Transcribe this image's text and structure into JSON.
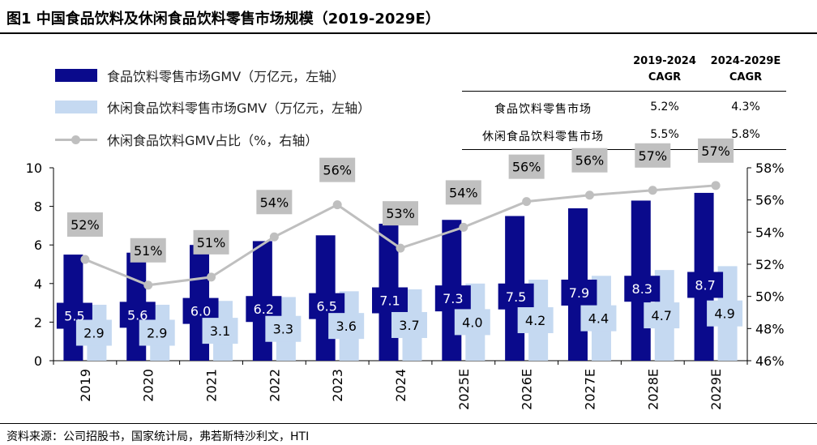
{
  "figure_title": "图1  中国食品饮料及休闲食品饮料零售市场规模（2019-2029E）",
  "legend": [
    {
      "label": "食品饮料零售市场GMV（万亿元，左轴）"
    },
    {
      "label": "休闲食品饮料零售市场GMV（万亿元，左轴）"
    },
    {
      "label": "休闲食品饮料GMV占比（%，右轴）"
    }
  ],
  "cagr_table": {
    "headers": [
      "2019-2024\nCAGR",
      "2024-2029E\nCAGR"
    ],
    "rows": [
      {
        "name": "食品饮料零售市场",
        "values": [
          "5.2%",
          "4.3%"
        ]
      },
      {
        "name": "休闲食品饮料零售市场",
        "values": [
          "5.5%",
          "5.8%"
        ]
      }
    ]
  },
  "footnote": "资料来源：公司招股书，国家统计局，弗若斯特沙利文，HTI",
  "colors": {
    "dark_bar": "#0a0a8c",
    "light_bar": "#c5d9f1",
    "line": "#bfbfbf",
    "label_box": "#c0c0c0"
  },
  "chart_data": {
    "type": "bar+line",
    "categories": [
      "2019",
      "2020",
      "2021",
      "2022",
      "2023",
      "2024",
      "2025E",
      "2026E",
      "2027E",
      "2028E",
      "2029E"
    ],
    "series": [
      {
        "name": "食品饮料零售市场GMV（万亿元，左轴）",
        "type": "bar",
        "axis": "left",
        "values": [
          5.5,
          5.6,
          6.0,
          6.2,
          6.5,
          7.1,
          7.3,
          7.5,
          7.9,
          8.3,
          8.7
        ],
        "labels": [
          "5.5",
          "5.6",
          "6.0",
          "6.2",
          "6.5",
          "7.1",
          "7.3",
          "7.5",
          "7.9",
          "8.3",
          "8.7"
        ]
      },
      {
        "name": "休闲食品饮料零售市场GMV（万亿元，左轴）",
        "type": "bar",
        "axis": "left",
        "values": [
          2.9,
          2.9,
          3.1,
          3.3,
          3.6,
          3.7,
          4.0,
          4.2,
          4.4,
          4.7,
          4.9
        ],
        "labels": [
          "2.9",
          "2.9",
          "3.1",
          "3.3",
          "3.6",
          "3.7",
          "4.0",
          "4.2",
          "4.4",
          "4.7",
          "4.9"
        ]
      },
      {
        "name": "休闲食品饮料GMV占比（%，右轴）",
        "type": "line",
        "axis": "right",
        "values": [
          52.3,
          50.7,
          51.2,
          53.7,
          55.7,
          53.0,
          54.3,
          55.9,
          56.3,
          56.6,
          56.9
        ],
        "labels": [
          "52%",
          "51%",
          "51%",
          "54%",
          "56%",
          "53%",
          "54%",
          "56%",
          "56%",
          "57%",
          "57%"
        ]
      }
    ],
    "left_axis": {
      "min": 0,
      "max": 10,
      "ticks": [
        "0",
        "2",
        "4",
        "6",
        "8",
        "10"
      ]
    },
    "right_axis": {
      "min": 46,
      "max": 58,
      "ticks": [
        "46%",
        "48%",
        "50%",
        "52%",
        "54%",
        "56%",
        "58%"
      ]
    },
    "grid": false
  }
}
